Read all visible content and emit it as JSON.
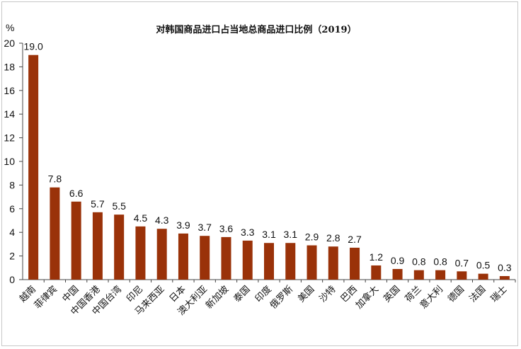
{
  "chart_data": {
    "type": "bar",
    "title": "对韩国商品进口占当地总商品进口比例（2019）",
    "unit": "%",
    "ylim": [
      0,
      20
    ],
    "yticks": [
      "0",
      "2",
      "4",
      "6",
      "8",
      "10",
      "12",
      "14",
      "16",
      "18",
      "20"
    ],
    "grid": false,
    "bar_color": "#9a3209",
    "categories": [
      "越南",
      "菲律宾",
      "中国",
      "中国香港",
      "中国台湾",
      "印尼",
      "马来西亚",
      "日本",
      "澳大利亚",
      "新加坡",
      "泰国",
      "印度",
      "俄罗斯",
      "美国",
      "沙特",
      "巴西",
      "加拿大",
      "英国",
      "荷兰",
      "意大利",
      "德国",
      "法国",
      "瑞士"
    ],
    "values": [
      19.0,
      7.8,
      6.6,
      5.7,
      5.5,
      4.5,
      4.3,
      3.9,
      3.7,
      3.6,
      3.3,
      3.1,
      3.1,
      2.9,
      2.8,
      2.7,
      1.2,
      0.9,
      0.8,
      0.8,
      0.7,
      0.5,
      0.3
    ],
    "value_labels": [
      "19.0",
      "7.8",
      "6.6",
      "5.7",
      "5.5",
      "4.5",
      "4.3",
      "3.9",
      "3.7",
      "3.6",
      "3.3",
      "3.1",
      "3.1",
      "2.9",
      "2.8",
      "2.7",
      "1.2",
      "0.9",
      "0.8",
      "0.8",
      "0.7",
      "0.5",
      "0.3"
    ]
  }
}
